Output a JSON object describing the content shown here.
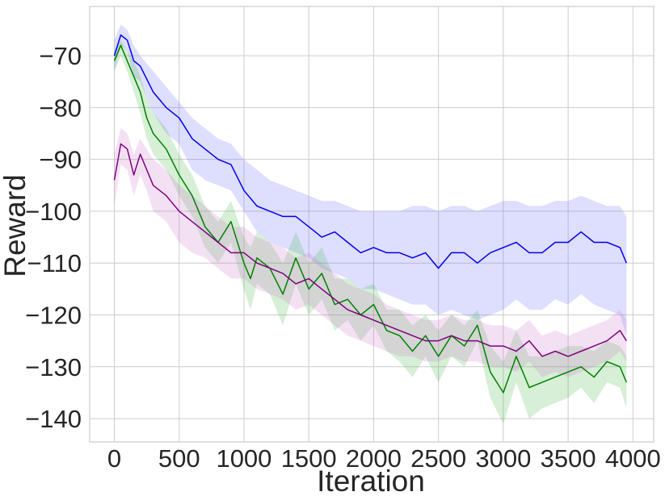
{
  "chart_data": {
    "type": "line",
    "xlabel": "Iteration",
    "ylabel": "Reward",
    "xlim": [
      -190,
      4160
    ],
    "ylim": [
      -144.5,
      -60.5
    ],
    "xticks": [
      0,
      500,
      1000,
      1500,
      2000,
      2500,
      3000,
      3500,
      4000
    ],
    "yticks": [
      -70,
      -80,
      -90,
      -100,
      -110,
      -120,
      -130,
      -140
    ],
    "xtick_labels": [
      "0",
      "500",
      "1000",
      "1500",
      "2000",
      "2500",
      "3000",
      "3500",
      "4000"
    ],
    "ytick_labels": [
      "−70",
      "−80",
      "−90",
      "−100",
      "−110",
      "−120",
      "−130",
      "−140"
    ],
    "grid": true,
    "legend": "none",
    "series": [
      {
        "color": "#0000ee",
        "band_color": "#6a6aff",
        "x": [
          0,
          50,
          100,
          150,
          200,
          300,
          400,
          500,
          600,
          700,
          800,
          900,
          1000,
          1100,
          1200,
          1300,
          1400,
          1500,
          1600,
          1700,
          1800,
          1900,
          2000,
          2100,
          2200,
          2300,
          2400,
          2500,
          2600,
          2700,
          2800,
          2900,
          3000,
          3100,
          3200,
          3300,
          3400,
          3500,
          3600,
          3700,
          3800,
          3900,
          3950
        ],
        "y": [
          -70,
          -66,
          -67,
          -71,
          -72,
          -77,
          -80,
          -82,
          -86,
          -88,
          -90,
          -91,
          -96,
          -99,
          -100,
          -101,
          -101,
          -103,
          -105,
          -104,
          -106,
          -108,
          -107,
          -108,
          -108,
          -109,
          -108,
          -111,
          -108,
          -108,
          -110,
          -108,
          -107,
          -106,
          -108,
          -108,
          -106,
          -106,
          -104,
          -106,
          -106,
          -107,
          -110
        ],
        "upper": [
          -67,
          -64,
          -65,
          -68,
          -70,
          -73,
          -76,
          -79,
          -82,
          -84,
          -86,
          -87,
          -90,
          -92,
          -94,
          -95,
          -96,
          -97,
          -98,
          -98,
          -99,
          -100,
          -100,
          -100,
          -100,
          -99,
          -99,
          -100,
          -99,
          -99,
          -100,
          -99,
          -98,
          -98,
          -99,
          -99,
          -98,
          -98,
          -97,
          -98,
          -99,
          -99,
          -101
        ],
        "lower": [
          -73,
          -68,
          -69,
          -74,
          -75,
          -81,
          -85,
          -87,
          -92,
          -94,
          -95,
          -96,
          -100,
          -104,
          -106,
          -107,
          -108,
          -109,
          -111,
          -112,
          -113,
          -115,
          -115,
          -116,
          -117,
          -118,
          -118,
          -120,
          -119,
          -120,
          -121,
          -120,
          -119,
          -117,
          -119,
          -119,
          -117,
          -118,
          -116,
          -118,
          -119,
          -120,
          -124
        ]
      },
      {
        "color": "#008000",
        "band_color": "#46b446",
        "x": [
          0,
          50,
          100,
          150,
          200,
          250,
          300,
          400,
          500,
          600,
          700,
          800,
          900,
          1000,
          1050,
          1100,
          1200,
          1300,
          1400,
          1500,
          1600,
          1700,
          1800,
          1900,
          2000,
          2100,
          2200,
          2300,
          2400,
          2500,
          2600,
          2700,
          2800,
          2900,
          3000,
          3100,
          3200,
          3300,
          3400,
          3500,
          3600,
          3700,
          3800,
          3900,
          3950
        ],
        "y": [
          -71,
          -68,
          -71,
          -74,
          -77,
          -82,
          -85,
          -88,
          -93,
          -97,
          -103,
          -106,
          -102,
          -110,
          -113,
          -109,
          -111,
          -116,
          -109,
          -115,
          -112,
          -118,
          -117,
          -120,
          -118,
          -123,
          -124,
          -127,
          -124,
          -128,
          -124,
          -126,
          -122,
          -131,
          -135,
          -128,
          -134,
          -133,
          -132,
          -131,
          -130,
          -132,
          -129,
          -130,
          -133
        ],
        "upper": [
          -69,
          -67,
          -69,
          -71,
          -74,
          -78,
          -81,
          -84,
          -89,
          -93,
          -99,
          -102,
          -98,
          -105,
          -107,
          -104,
          -106,
          -110,
          -104,
          -110,
          -107,
          -113,
          -113,
          -115,
          -114,
          -119,
          -119,
          -122,
          -120,
          -123,
          -120,
          -122,
          -119,
          -126,
          -129,
          -123,
          -128,
          -128,
          -127,
          -126,
          -126,
          -127,
          -125,
          -126,
          -128
        ],
        "lower": [
          -73,
          -70,
          -73,
          -77,
          -81,
          -86,
          -89,
          -92,
          -97,
          -101,
          -107,
          -110,
          -106,
          -115,
          -119,
          -114,
          -116,
          -122,
          -114,
          -120,
          -117,
          -123,
          -121,
          -125,
          -122,
          -127,
          -129,
          -132,
          -128,
          -133,
          -128,
          -130,
          -125,
          -136,
          -141,
          -133,
          -140,
          -138,
          -137,
          -136,
          -134,
          -137,
          -133,
          -134,
          -138
        ]
      },
      {
        "color": "#800080",
        "band_color": "#c878c8",
        "x": [
          0,
          50,
          100,
          150,
          200,
          250,
          300,
          400,
          500,
          600,
          700,
          800,
          900,
          1000,
          1100,
          1200,
          1300,
          1400,
          1500,
          1600,
          1700,
          1800,
          1900,
          2000,
          2100,
          2200,
          2300,
          2400,
          2500,
          2600,
          2700,
          2800,
          2900,
          3000,
          3100,
          3200,
          3300,
          3400,
          3500,
          3600,
          3700,
          3800,
          3900,
          3950
        ],
        "y": [
          -94,
          -87,
          -88,
          -93,
          -89,
          -92,
          -95,
          -97,
          -100,
          -102,
          -104,
          -106,
          -108,
          -108,
          -110,
          -111,
          -112,
          -114,
          -113,
          -115,
          -117,
          -119,
          -120,
          -121,
          -122,
          -123,
          -124,
          -125,
          -125,
          -124,
          -125,
          -125,
          -126,
          -126,
          -127,
          -125,
          -128,
          -127,
          -128,
          -127,
          -126,
          -125,
          -123,
          -125
        ],
        "upper": [
          -89,
          -84,
          -85,
          -89,
          -86,
          -88,
          -90,
          -92,
          -95,
          -97,
          -99,
          -101,
          -103,
          -103,
          -105,
          -106,
          -107,
          -109,
          -108,
          -110,
          -112,
          -114,
          -115,
          -116,
          -118,
          -119,
          -120,
          -121,
          -121,
          -120,
          -121,
          -121,
          -122,
          -122,
          -123,
          -121,
          -124,
          -123,
          -124,
          -123,
          -122,
          -121,
          -119,
          -121
        ],
        "lower": [
          -99,
          -91,
          -92,
          -97,
          -93,
          -96,
          -100,
          -102,
          -106,
          -108,
          -109,
          -111,
          -113,
          -113,
          -115,
          -116,
          -117,
          -119,
          -118,
          -120,
          -122,
          -124,
          -125,
          -126,
          -127,
          -128,
          -128,
          -129,
          -129,
          -128,
          -129,
          -129,
          -130,
          -130,
          -131,
          -129,
          -132,
          -131,
          -132,
          -131,
          -130,
          -129,
          -127,
          -129
        ]
      }
    ]
  }
}
